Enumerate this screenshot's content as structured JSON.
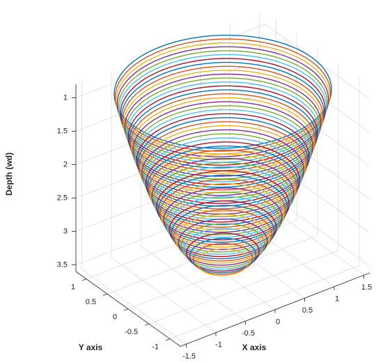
{
  "chart_data": {
    "type": "rings3d",
    "x_label": "X axis",
    "y_label": "Y axis",
    "z_label": "Depth (wd)",
    "xlim": [
      -1.6,
      1.6
    ],
    "ylim": [
      -1.25,
      1.25
    ],
    "zlim": [
      0.8,
      3.6
    ],
    "z_reversed": true,
    "xticks": [
      -1.5,
      -1,
      -0.5,
      0,
      0.5,
      1,
      1.5
    ],
    "yticks": [
      -1,
      -0.5,
      0,
      0.5,
      1
    ],
    "zticks": [
      1,
      1.5,
      2,
      2.5,
      3,
      3.5
    ],
    "grid": true,
    "colors": [
      "#0072BD",
      "#D95319",
      "#EDB120",
      "#7E2F8E",
      "#77AC30",
      "#4DBEEE",
      "#A2142F"
    ],
    "depth": [
      0.9,
      0.95,
      1.0,
      1.05,
      1.1,
      1.15,
      1.2,
      1.25,
      1.3,
      1.35,
      1.4,
      1.45,
      1.5,
      1.55,
      1.6,
      1.65,
      1.7,
      1.75,
      1.8,
      1.85,
      1.9,
      1.95,
      2.0,
      2.05,
      2.1,
      2.15,
      2.2,
      2.25,
      2.3,
      2.35,
      2.4,
      2.45,
      2.5,
      2.55,
      2.6,
      2.65,
      2.7,
      2.75,
      2.8,
      2.85,
      2.9,
      2.95,
      3.0,
      3.05,
      3.1,
      3.15,
      3.2,
      3.25,
      3.3,
      3.35,
      3.4,
      3.45
    ],
    "radius": [
      1.5,
      1.486,
      1.472,
      1.458,
      1.443,
      1.429,
      1.414,
      1.399,
      1.384,
      1.369,
      1.354,
      1.339,
      1.323,
      1.307,
      1.291,
      1.275,
      1.258,
      1.242,
      1.225,
      1.208,
      1.19,
      1.173,
      1.155,
      1.137,
      1.118,
      1.099,
      1.08,
      1.061,
      1.041,
      1.021,
      1.0,
      0.979,
      0.957,
      0.935,
      0.913,
      0.89,
      0.866,
      0.842,
      0.816,
      0.791,
      0.764,
      0.736,
      0.707,
      0.677,
      0.645,
      0.612,
      0.577,
      0.54,
      0.5,
      0.456,
      0.408,
      0.354
    ]
  }
}
